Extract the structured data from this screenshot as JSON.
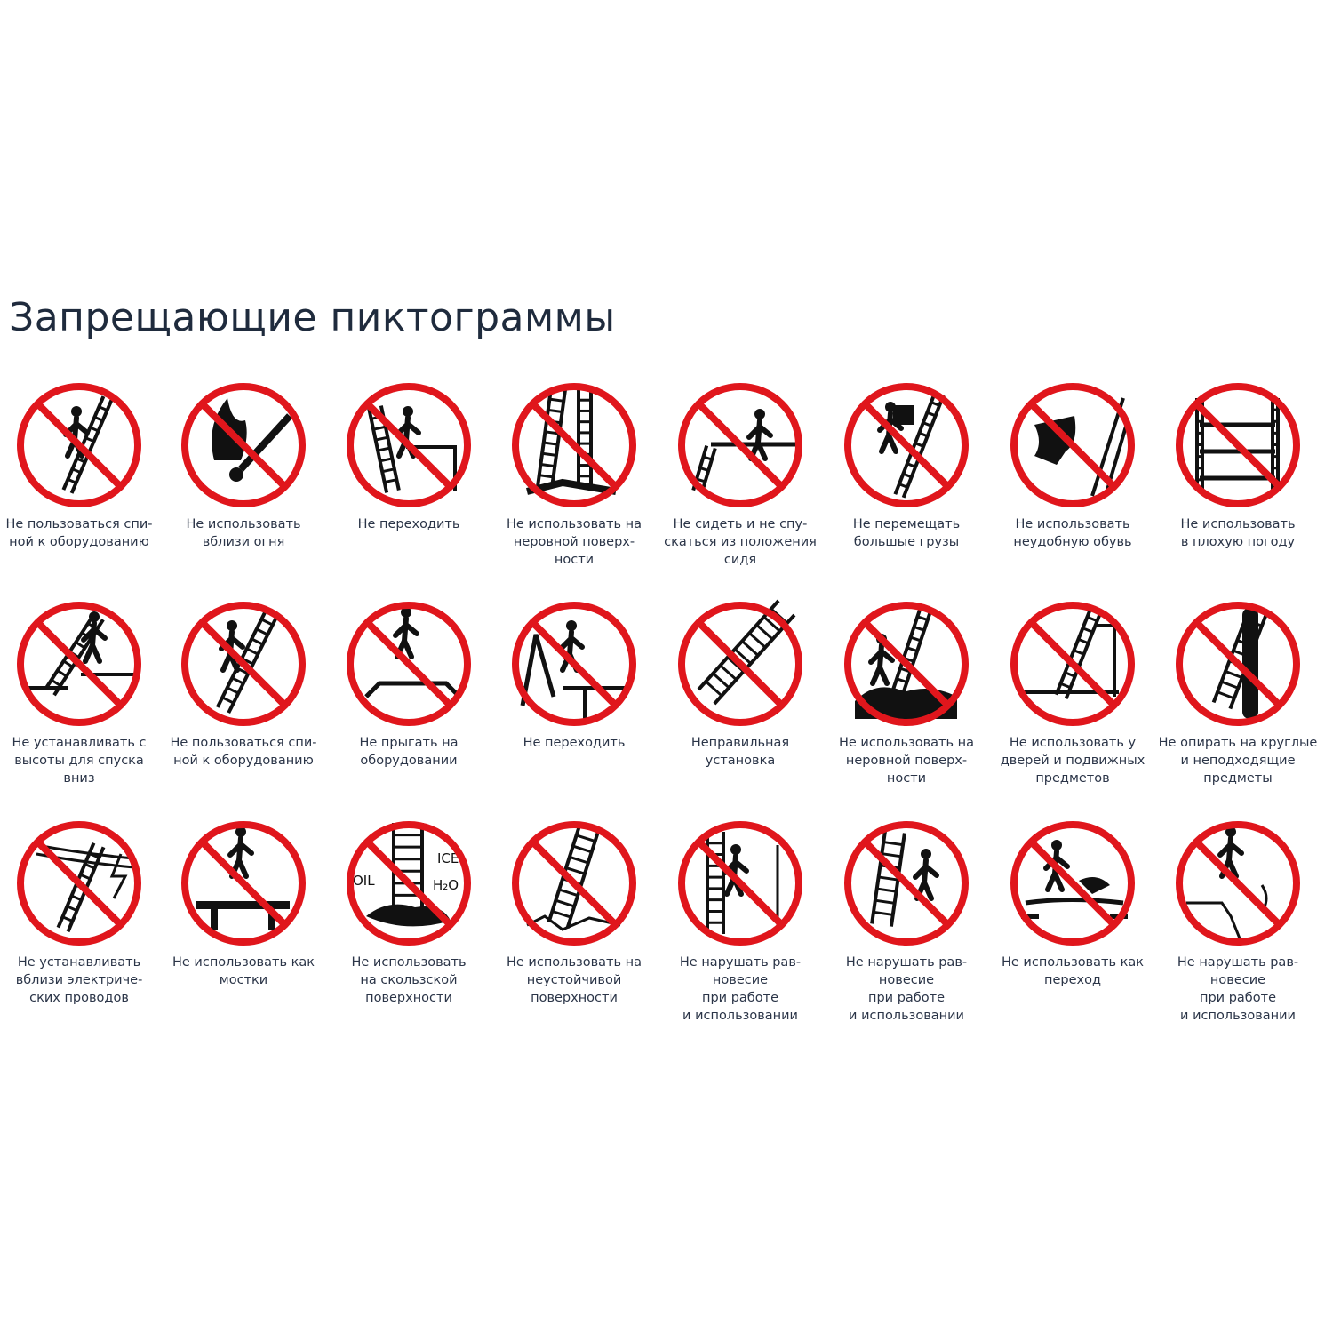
{
  "page_title": "Запрещающие пиктограммы",
  "colors": {
    "prohibition_red": "#e0161c",
    "pictogram": "#111111",
    "text": "#2b3548"
  },
  "pictograms": [
    {
      "caption": "Не пользоваться спи-\nной к оборудованию",
      "icon": "person-climbing-ladder-backwards"
    },
    {
      "caption": "Не использовать\nвблизи огня",
      "icon": "fire-match"
    },
    {
      "caption": "Не переходить",
      "icon": "person-stepping-off-ladder"
    },
    {
      "caption": "Не использовать на\nнеровной поверх-\nности",
      "icon": "ladders-uneven-surface"
    },
    {
      "caption": "Не сидеть и не спу-\nскаться из положения\nсидя",
      "icon": "person-sitting-on-ladder"
    },
    {
      "caption": "Не перемещать\nбольшые грузы",
      "icon": "person-carrying-box"
    },
    {
      "caption": "Не использовать\nнеудобную обувь",
      "icon": "shoe"
    },
    {
      "caption": "Не использовать\nв плохую погоду",
      "icon": "bad-weather"
    },
    {
      "caption": "Не устанавливать с\nвысоты для спуска\nвниз",
      "icon": "ladder-from-height"
    },
    {
      "caption": "Не пользоваться спи-\nной к оборудованию",
      "icon": "person-back-to-ladder"
    },
    {
      "caption": "Не прыгать на\nоборудовании",
      "icon": "person-jumping"
    },
    {
      "caption": "Не переходить",
      "icon": "person-crossing-ladder"
    },
    {
      "caption": "Неправильная\nустановка",
      "icon": "wrong-setup"
    },
    {
      "caption": "Не использовать на\nнеровной поверх-\nности",
      "icon": "ladder-rough-ground"
    },
    {
      "caption": "Не использовать у\nдверей и подвижных\nпредметов",
      "icon": "ladder-near-door"
    },
    {
      "caption": "Не опирать на круглые\nи неподходящие\nпредметы",
      "icon": "ladder-on-pole"
    },
    {
      "caption": "Не устанавливать\nвблизи электриче-\nских проводов",
      "icon": "electric-wires"
    },
    {
      "caption": "Не использовать как\nмостки",
      "icon": "ladder-as-bridge"
    },
    {
      "caption": "Не использовать\nна скользской\nповерхности",
      "icon": "slippery-surface",
      "labels": [
        "ICE",
        "OIL",
        "H₂O"
      ]
    },
    {
      "caption": "Не использовать на\nнеустойчивой\nповерхности",
      "icon": "unstable-surface"
    },
    {
      "caption": "Не нарушать рав-\nновесие\nпри работе\nи использовании",
      "icon": "person-hammering"
    },
    {
      "caption": "Не нарушать рав-\nновесие\nпри работе\nи использовании",
      "icon": "person-pushing-ladder"
    },
    {
      "caption": "Не использовать как\nпереход",
      "icon": "ladder-as-crossing"
    },
    {
      "caption": "Не нарушать рав-\nновесие\nпри работе\nи использовании",
      "icon": "person-falling"
    }
  ]
}
